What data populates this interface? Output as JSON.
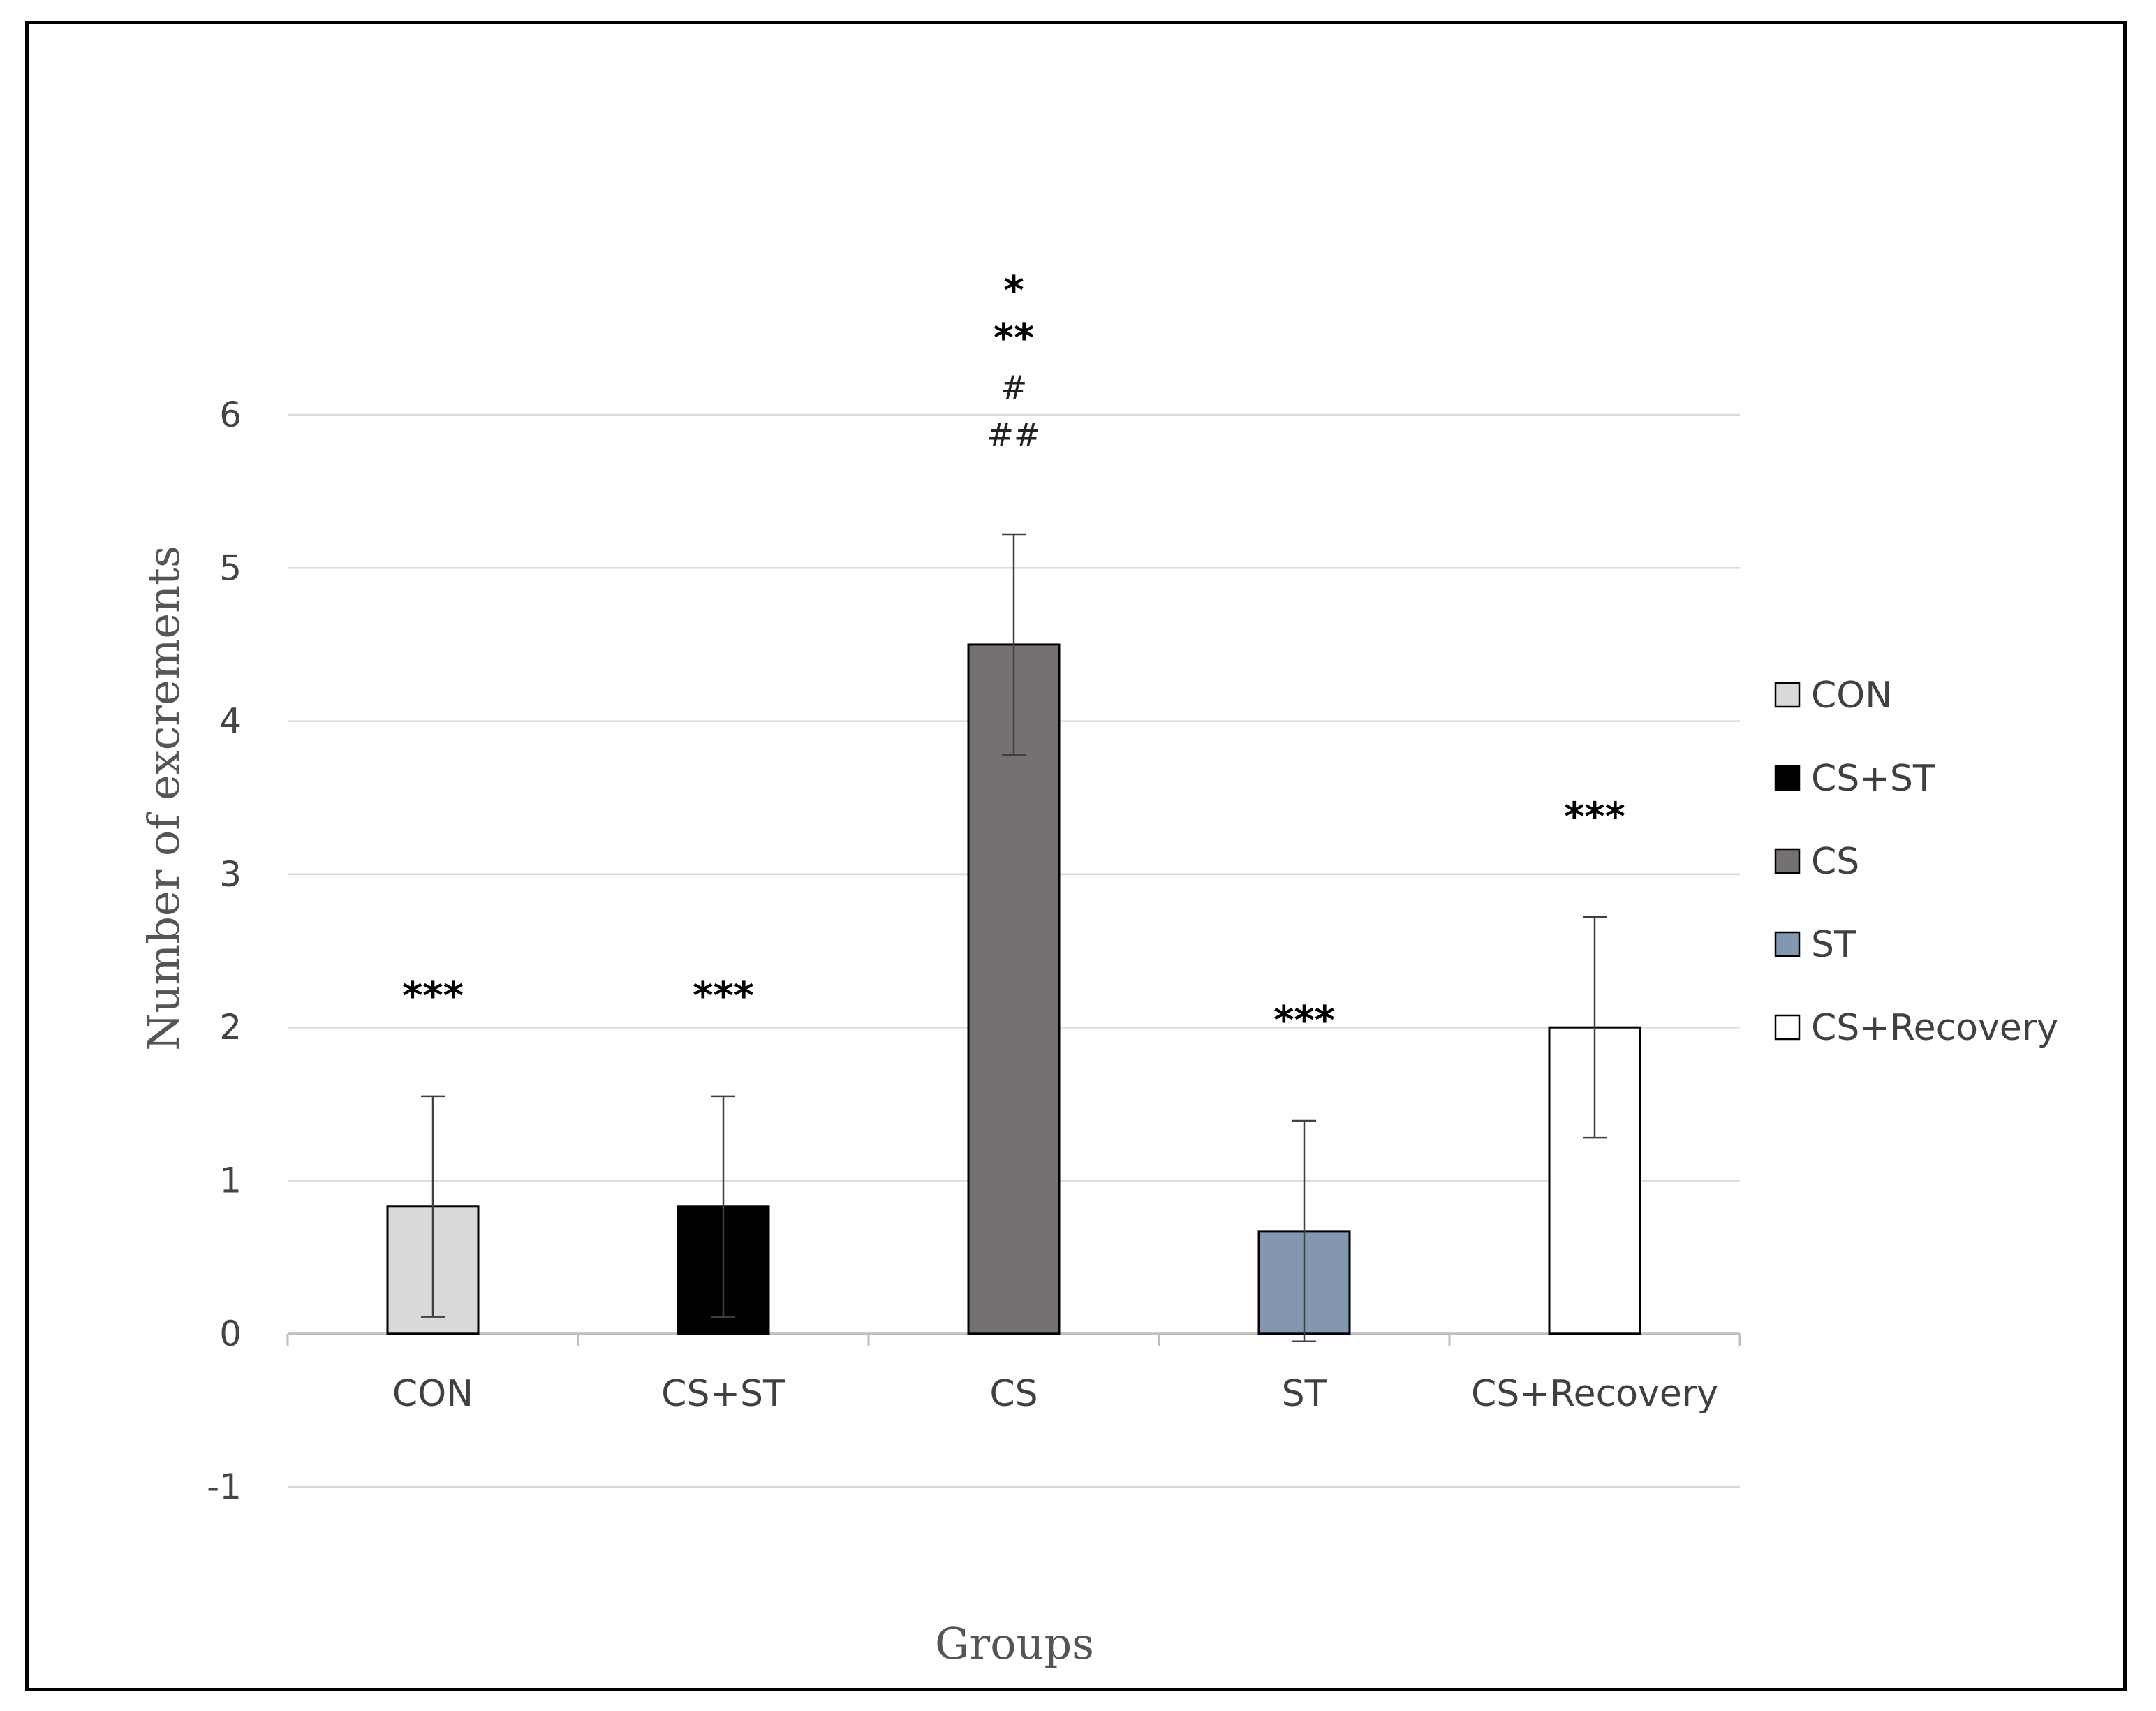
{
  "chart_data": {
    "type": "bar",
    "title": "",
    "xlabel": "Groups",
    "ylabel": "Number of excrements",
    "ylim": [
      -1,
      6
    ],
    "yticks": [
      -1,
      0,
      1,
      2,
      3,
      4,
      5,
      6
    ],
    "grid": true,
    "legend_position": "right",
    "categories": [
      "CON",
      "CS+ST",
      "CS",
      "ST",
      "CS+Recovery"
    ],
    "values": [
      0.83,
      0.83,
      4.5,
      0.67,
      2.0
    ],
    "error": [
      0.72,
      0.72,
      0.72,
      0.72,
      0.72
    ],
    "colors": [
      "#d9d9d9",
      "#000000",
      "#767171",
      "#8497b0",
      "#ffffff"
    ],
    "annotations": [
      [
        "***"
      ],
      [
        "***"
      ],
      [
        "*",
        "**",
        "#",
        "##"
      ],
      [
        "***"
      ],
      [
        "***"
      ]
    ],
    "legend": [
      "CON",
      "CS+ST",
      "CS",
      "ST",
      "CS+Recovery"
    ]
  }
}
